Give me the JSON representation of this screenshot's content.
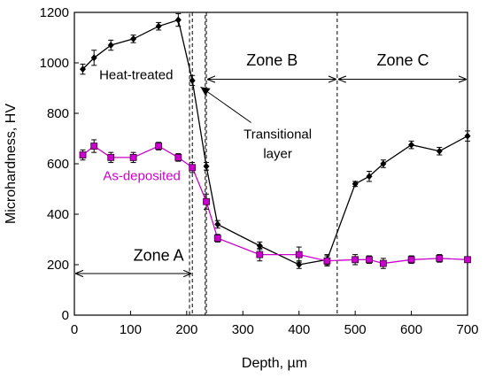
{
  "chart_data": {
    "type": "line",
    "xlabel": "Depth, µm",
    "ylabel": "Microhardness, HV",
    "xlim": [
      0,
      700
    ],
    "ylim": [
      0,
      1200
    ],
    "xticks": [
      0,
      100,
      200,
      300,
      400,
      500,
      600,
      700
    ],
    "yticks": [
      0,
      200,
      400,
      600,
      800,
      1000,
      1200
    ],
    "grid": false,
    "series": [
      {
        "name": "Heat-treated",
        "color": "#000000",
        "marker": "diamond",
        "x": [
          15,
          35,
          65,
          105,
          150,
          185,
          210,
          235,
          255,
          330,
          400,
          450,
          500,
          525,
          550,
          600,
          650,
          700
        ],
        "y": [
          975,
          1020,
          1070,
          1095,
          1145,
          1170,
          930,
          590,
          360,
          275,
          200,
          220,
          520,
          550,
          600,
          675,
          650,
          710
        ],
        "err": [
          20,
          30,
          20,
          15,
          15,
          25,
          20,
          15,
          15,
          15,
          15,
          20,
          10,
          20,
          15,
          15,
          15,
          20
        ]
      },
      {
        "name": "As-deposited",
        "color": "#cc00cc",
        "marker": "square",
        "x": [
          15,
          35,
          65,
          105,
          150,
          185,
          210,
          235,
          255,
          330,
          400,
          450,
          500,
          525,
          550,
          600,
          650,
          700
        ],
        "y": [
          635,
          670,
          625,
          625,
          670,
          625,
          585,
          450,
          305,
          240,
          240,
          215,
          220,
          220,
          205,
          220,
          225,
          220
        ],
        "err": [
          20,
          25,
          20,
          20,
          15,
          15,
          20,
          30,
          15,
          25,
          30,
          20,
          20,
          15,
          20,
          15,
          15,
          10
        ]
      }
    ],
    "zones": [
      {
        "label": "Zone A",
        "from": 0,
        "to": 210,
        "label_x": 150,
        "label_y": 215,
        "arrow_y": 165
      },
      {
        "label": "Zone B",
        "from": 235,
        "to": 468,
        "label_x": 352,
        "label_y": 990,
        "arrow_y": 935
      },
      {
        "label": "Zone C",
        "from": 468,
        "to": 700,
        "label_x": 585,
        "label_y": 990,
        "arrow_y": 935
      }
    ],
    "boundaries": [
      210,
      235,
      468
    ],
    "transition_box": {
      "x0": 205,
      "x1": 233,
      "y0": 0,
      "y1": 1200
    },
    "series_labels": [
      {
        "text": "Heat-treated",
        "x": 110,
        "y": 935
      },
      {
        "text": "As-deposited",
        "x": 120,
        "y": 535
      }
    ],
    "callout": {
      "line1": "Transitional",
      "line2": "layer",
      "text_x": 362,
      "text_y": 700,
      "target_x": 220,
      "target_y": 915
    }
  }
}
